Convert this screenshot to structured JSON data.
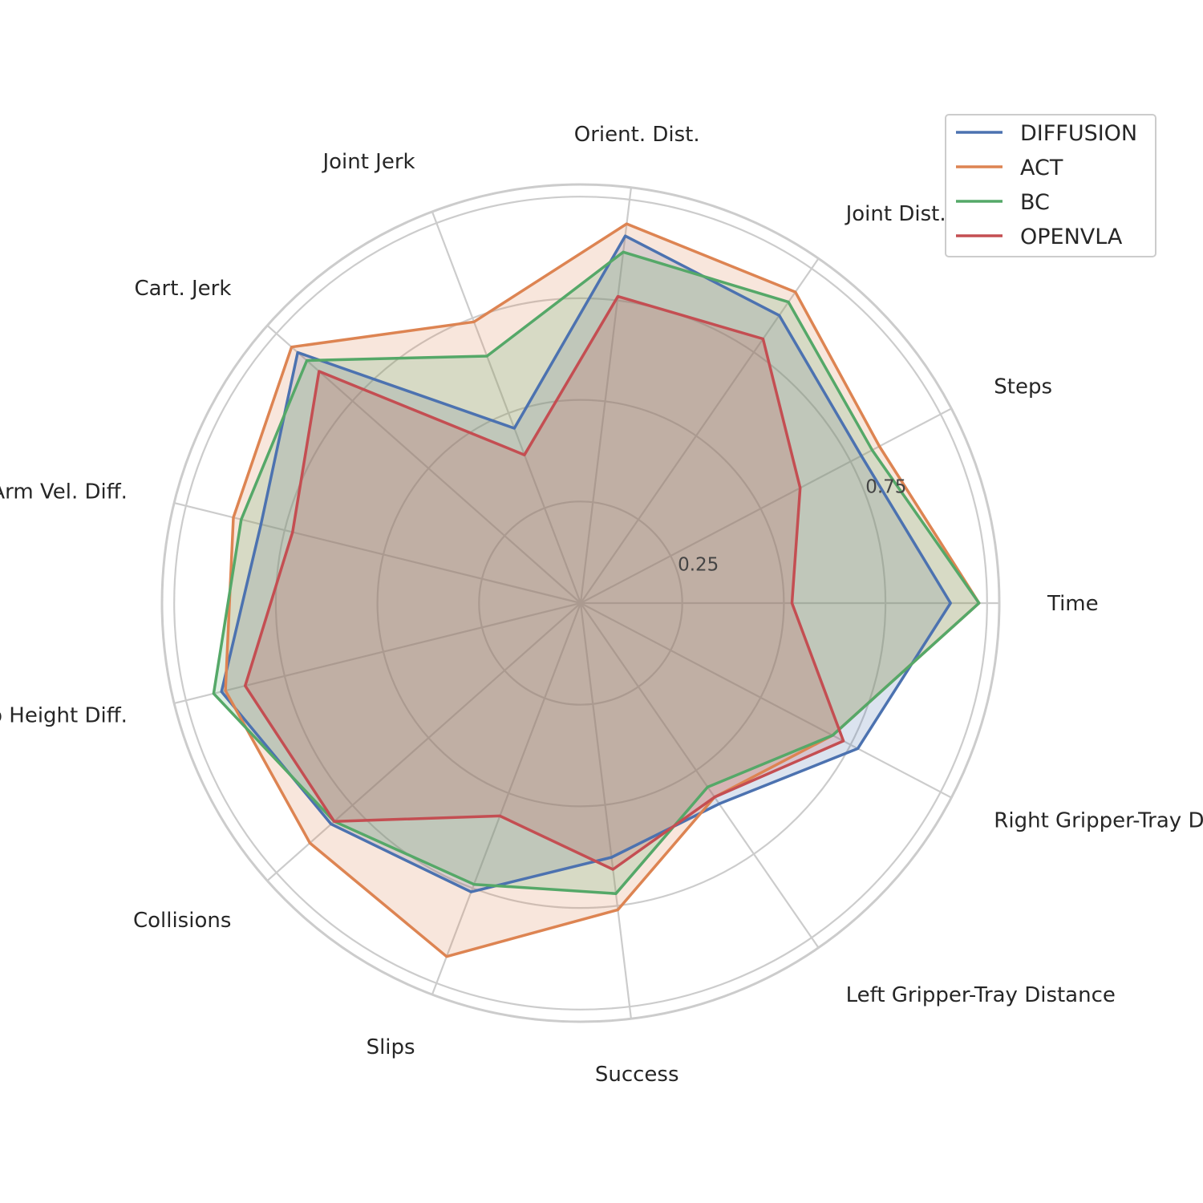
{
  "chart_data": {
    "type": "radar",
    "categories": [
      "Time",
      "Steps",
      "Joint Dist.",
      "Orient. Dist.",
      "Joint Jerk",
      "Cart. Jerk",
      "Arm Vel. Diff.",
      "Grip Height Diff.",
      "Collisions",
      "Slips",
      "Success",
      "Left Gripper-Tray Distance",
      "Right Gripper-Tray Distance"
    ],
    "r_ticks": [
      0.25,
      0.75
    ],
    "r_tick_labels": [
      "0.25",
      "0.75"
    ],
    "rlim": [
      0,
      1.03
    ],
    "grid": true,
    "legend_position": "upper-right",
    "series": [
      {
        "name": "DIFFUSION",
        "color": "#4C72B0",
        "values": [
          0.91,
          0.78,
          0.86,
          0.91,
          0.46,
          0.93,
          0.81,
          0.91,
          0.82,
          0.76,
          0.63,
          0.6,
          0.77
        ]
      },
      {
        "name": "ACT",
        "color": "#DD8452",
        "values": [
          0.98,
          0.83,
          0.93,
          0.94,
          0.74,
          0.95,
          0.88,
          0.9,
          0.89,
          0.93,
          0.76,
          0.58,
          0.7
        ]
      },
      {
        "name": "BC",
        "color": "#55A868",
        "values": [
          0.98,
          0.81,
          0.9,
          0.87,
          0.65,
          0.9,
          0.86,
          0.93,
          0.81,
          0.74,
          0.72,
          0.55,
          0.7
        ]
      },
      {
        "name": "OPENVLA",
        "color": "#C44E52",
        "values": [
          0.52,
          0.61,
          0.79,
          0.76,
          0.39,
          0.86,
          0.73,
          0.85,
          0.81,
          0.56,
          0.66,
          0.58,
          0.73
        ]
      }
    ]
  }
}
